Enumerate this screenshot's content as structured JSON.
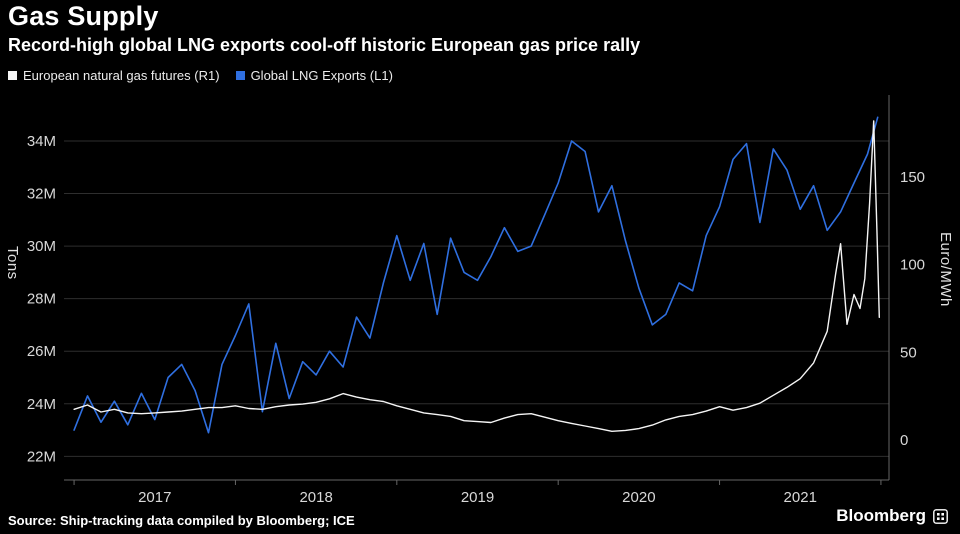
{
  "header": {
    "title": "Gas Supply",
    "subtitle": "Record-high global LNG exports cool-off historic European gas price rally"
  },
  "footer": {
    "source": "Source: Ship-tracking data compiled by Bloomberg; ICE",
    "brand": "Bloomberg"
  },
  "colors": {
    "background": "#000000",
    "grid": "#2e2e2e",
    "axis_line": "#666666",
    "tick_text": "#d8d8d8",
    "futures_line": "#f5f5f5",
    "lng_line": "#2f6fe0"
  },
  "chart_data": {
    "type": "line",
    "title": "Gas Supply",
    "subtitle": "Record-high global LNG exports cool-off historic European gas price rally",
    "grid": true,
    "legend_position": "top-left",
    "xlim": [
      2016.95,
      2022.05
    ],
    "x_tick_marks": [
      2017,
      2018,
      2019,
      2020,
      2021,
      2022
    ],
    "x_tick_labels": [
      {
        "label": "2017",
        "pos": 2017.5
      },
      {
        "label": "2018",
        "pos": 2018.5
      },
      {
        "label": "2019",
        "pos": 2019.5
      },
      {
        "label": "2020",
        "pos": 2020.5
      },
      {
        "label": "2021",
        "pos": 2021.5
      }
    ],
    "left_axis": {
      "label": "Tons",
      "unit": "million tons",
      "min": 21.1,
      "max": 35.75,
      "ticks": [
        {
          "label": "22M",
          "value": 22
        },
        {
          "label": "24M",
          "value": 24
        },
        {
          "label": "26M",
          "value": 26
        },
        {
          "label": "28M",
          "value": 28
        },
        {
          "label": "30M",
          "value": 30
        },
        {
          "label": "32M",
          "value": 32
        },
        {
          "label": "34M",
          "value": 34
        }
      ]
    },
    "right_axis": {
      "label": "Euro/MWh",
      "unit": "Euro/MWh",
      "min": -22.8,
      "max": 196.8,
      "ticks": [
        {
          "label": "0",
          "value": 0
        },
        {
          "label": "50",
          "value": 50
        },
        {
          "label": "100",
          "value": 100
        },
        {
          "label": "150",
          "value": 150
        }
      ]
    },
    "series": [
      {
        "name": "European natural gas futures (R1)",
        "axis": "right",
        "color": "#f5f5f5",
        "unit": "Euro/MWh",
        "x": [
          2017.0,
          2017.083,
          2017.167,
          2017.25,
          2017.333,
          2017.417,
          2017.5,
          2017.583,
          2017.667,
          2017.75,
          2017.833,
          2017.917,
          2018.0,
          2018.083,
          2018.167,
          2018.25,
          2018.333,
          2018.417,
          2018.5,
          2018.583,
          2018.667,
          2018.75,
          2018.833,
          2018.917,
          2019.0,
          2019.083,
          2019.167,
          2019.25,
          2019.333,
          2019.417,
          2019.5,
          2019.583,
          2019.667,
          2019.75,
          2019.833,
          2019.917,
          2020.0,
          2020.083,
          2020.167,
          2020.25,
          2020.333,
          2020.417,
          2020.5,
          2020.583,
          2020.667,
          2020.75,
          2020.833,
          2020.917,
          2021.0,
          2021.083,
          2021.167,
          2021.25,
          2021.333,
          2021.417,
          2021.5,
          2021.583,
          2021.667,
          2021.72,
          2021.75,
          2021.79,
          2021.833,
          2021.87,
          2021.9,
          2021.93,
          2021.955,
          2021.975,
          2021.99
        ],
        "values": [
          17.5,
          20,
          16,
          17.5,
          15.5,
          15,
          15.5,
          16,
          16.5,
          17.5,
          18.5,
          18.5,
          19.5,
          18,
          17.5,
          19,
          20,
          20.5,
          21.5,
          23.5,
          26.5,
          24.5,
          23,
          22,
          19.5,
          17.5,
          15.5,
          14.5,
          13.5,
          11,
          10.5,
          10,
          12.5,
          14.5,
          15,
          13,
          11,
          9.5,
          8,
          6.5,
          5,
          5.5,
          6.5,
          8.5,
          11.5,
          13.5,
          14.5,
          16.5,
          19,
          17,
          18.5,
          21,
          25.5,
          30,
          35,
          44,
          62,
          95,
          112,
          66,
          83,
          75,
          92,
          135,
          182,
          120,
          70
        ]
      },
      {
        "name": "Global LNG Exports (L1)",
        "axis": "left",
        "color": "#2f6fe0",
        "unit": "million tons",
        "x": [
          2017.0,
          2017.083,
          2017.167,
          2017.25,
          2017.333,
          2017.417,
          2017.5,
          2017.583,
          2017.667,
          2017.75,
          2017.833,
          2017.917,
          2018.0,
          2018.083,
          2018.167,
          2018.25,
          2018.333,
          2018.417,
          2018.5,
          2018.583,
          2018.667,
          2018.75,
          2018.833,
          2018.917,
          2019.0,
          2019.083,
          2019.167,
          2019.25,
          2019.333,
          2019.417,
          2019.5,
          2019.583,
          2019.667,
          2019.75,
          2019.833,
          2019.917,
          2020.0,
          2020.083,
          2020.167,
          2020.25,
          2020.333,
          2020.417,
          2020.5,
          2020.583,
          2020.667,
          2020.75,
          2020.833,
          2020.917,
          2021.0,
          2021.083,
          2021.167,
          2021.25,
          2021.333,
          2021.417,
          2021.5,
          2021.583,
          2021.667,
          2021.75,
          2021.833,
          2021.917,
          2021.98
        ],
        "values": [
          23.0,
          24.3,
          23.3,
          24.1,
          23.2,
          24.4,
          23.4,
          25.0,
          25.5,
          24.5,
          22.9,
          25.5,
          26.6,
          27.8,
          23.7,
          26.3,
          24.2,
          25.6,
          25.1,
          26.0,
          25.4,
          27.3,
          26.5,
          28.6,
          30.4,
          28.7,
          30.1,
          27.4,
          30.3,
          29.0,
          28.7,
          29.6,
          30.7,
          29.8,
          30.0,
          31.2,
          32.4,
          34.0,
          33.6,
          31.3,
          32.3,
          30.2,
          28.4,
          27.0,
          27.4,
          28.6,
          28.3,
          30.4,
          31.5,
          33.3,
          33.9,
          30.9,
          33.7,
          32.9,
          31.4,
          32.3,
          30.6,
          31.3,
          32.4,
          33.5,
          34.9
        ]
      }
    ]
  }
}
